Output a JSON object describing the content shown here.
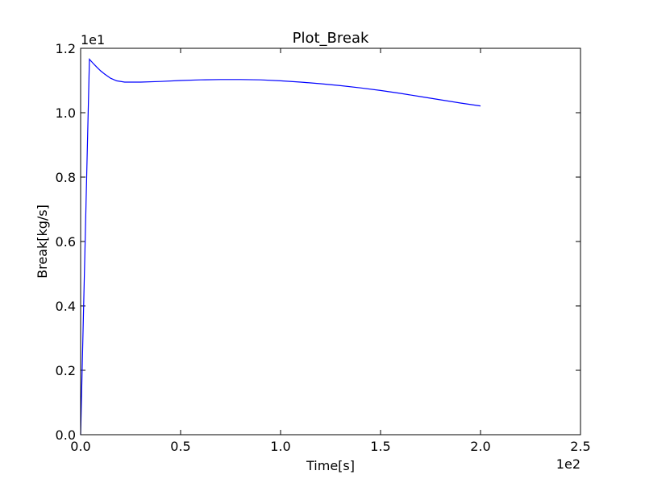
{
  "chart_data": {
    "type": "line",
    "title": "Plot_Break",
    "xlabel": "Time[s]",
    "ylabel": "Break[kg/s]",
    "xlim": [
      0,
      250
    ],
    "ylim": [
      0,
      12
    ],
    "x_offset_label": "1e2",
    "y_offset_label": "1e1",
    "x_ticks": [
      {
        "value": 0,
        "label": "0.0"
      },
      {
        "value": 50,
        "label": "0.5"
      },
      {
        "value": 100,
        "label": "1.0"
      },
      {
        "value": 150,
        "label": "1.5"
      },
      {
        "value": 200,
        "label": "2.0"
      },
      {
        "value": 250,
        "label": "2.5"
      }
    ],
    "y_ticks": [
      {
        "value": 0,
        "label": "0.0"
      },
      {
        "value": 2,
        "label": "0.2"
      },
      {
        "value": 4,
        "label": "0.4"
      },
      {
        "value": 6,
        "label": "0.6"
      },
      {
        "value": 8,
        "label": "0.8"
      },
      {
        "value": 10,
        "label": "1.0"
      },
      {
        "value": 12,
        "label": "1.2"
      }
    ],
    "grid": false,
    "line_color": "#0000ff",
    "series": [
      {
        "x": [
          0,
          4.4,
          6,
          8,
          10,
          12,
          15,
          18,
          22,
          30,
          40,
          50,
          60,
          70,
          80,
          90,
          100,
          110,
          120,
          130,
          140,
          150,
          160,
          170,
          180,
          190,
          200
        ],
        "y": [
          0,
          11.66,
          11.55,
          11.42,
          11.3,
          11.2,
          11.07,
          10.99,
          10.95,
          10.95,
          10.97,
          11.0,
          11.02,
          11.03,
          11.03,
          11.02,
          10.99,
          10.95,
          10.9,
          10.84,
          10.77,
          10.69,
          10.6,
          10.5,
          10.4,
          10.3,
          10.21
        ]
      }
    ]
  }
}
